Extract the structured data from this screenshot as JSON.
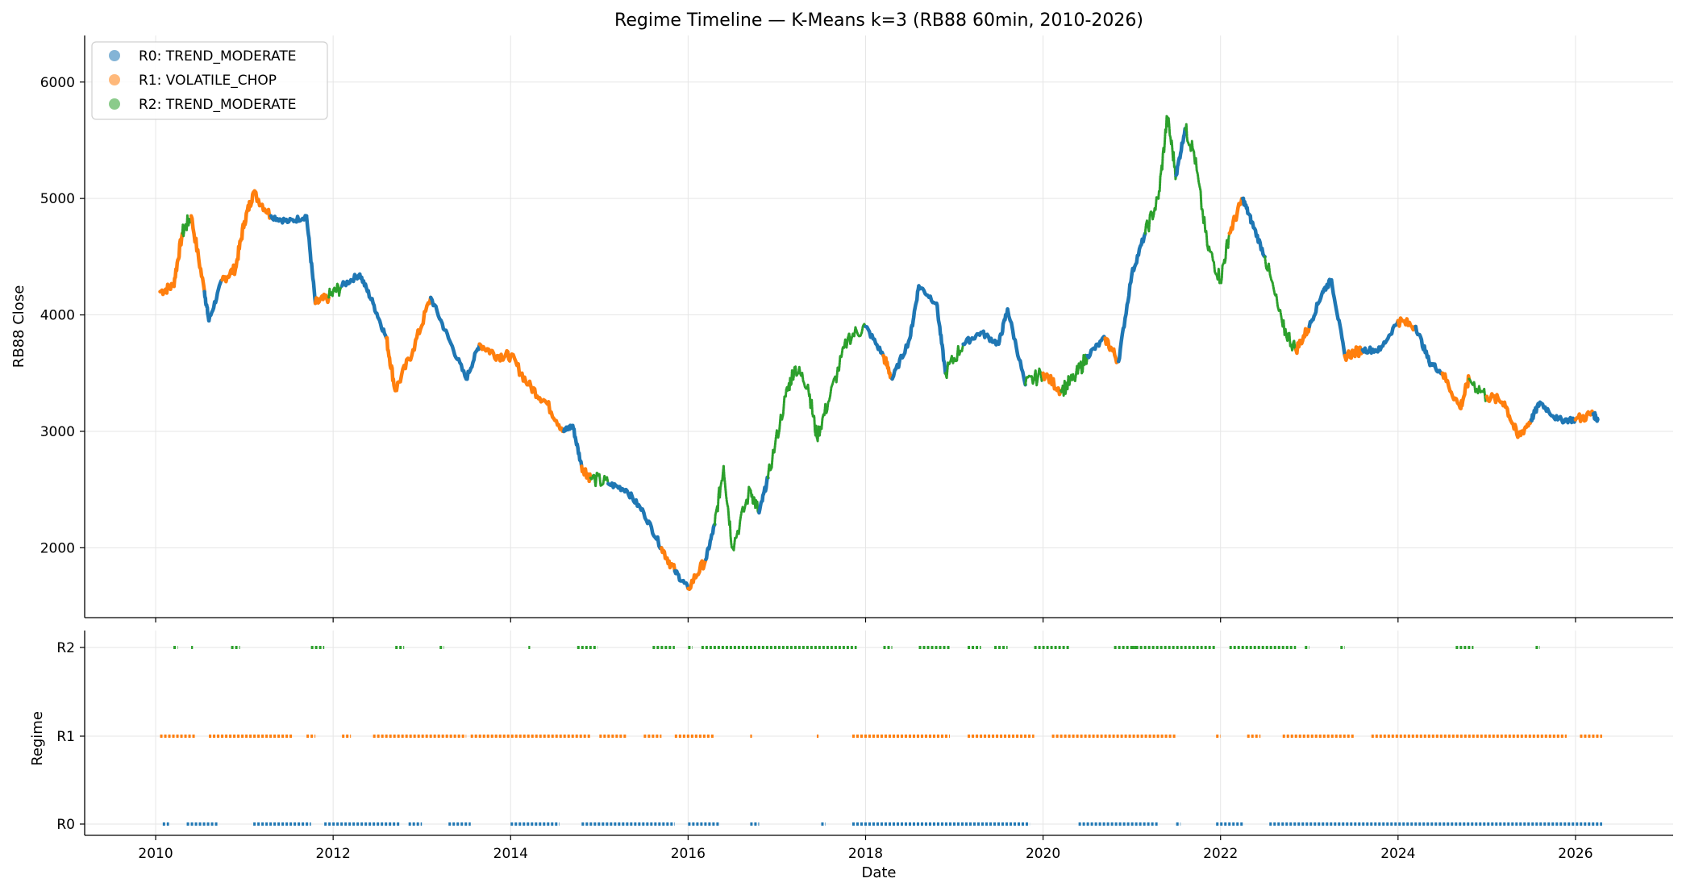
{
  "chart_data": {
    "type": "scatter",
    "title": "Regime Timeline — K-Means k=3 (RB88 60min, 2010-2026)",
    "xlabel": "Date",
    "x_ticks": [
      "2010",
      "2012",
      "2014",
      "2016",
      "2018",
      "2020",
      "2022",
      "2024",
      "2026"
    ],
    "xlim": [
      2009.2,
      2027.1
    ],
    "top_panel": {
      "ylabel": "RB88 Close",
      "ylim": [
        1400,
        6400
      ],
      "y_ticks": [
        "2000",
        "3000",
        "4000",
        "5000",
        "6000"
      ],
      "grid": true,
      "legend_placement": "upper-left",
      "series": [
        {
          "name": "R0: TREND_MODERATE",
          "color": "#1f77b4"
        },
        {
          "name": "R1: VOLATILE_CHOP",
          "color": "#ff7f0e"
        },
        {
          "name": "R2: TREND_MODERATE",
          "color": "#2ca02c"
        }
      ],
      "price_path": [
        [
          2010.05,
          4200,
          1
        ],
        [
          2010.2,
          4250,
          1
        ],
        [
          2010.3,
          4700,
          2
        ],
        [
          2010.4,
          4850,
          1
        ],
        [
          2010.55,
          4200,
          0
        ],
        [
          2010.6,
          3950,
          0
        ],
        [
          2010.75,
          4300,
          1
        ],
        [
          2010.9,
          4400,
          1
        ],
        [
          2011.0,
          4800,
          1
        ],
        [
          2011.1,
          5050,
          1
        ],
        [
          2011.3,
          4850,
          0
        ],
        [
          2011.5,
          4800,
          0
        ],
        [
          2011.7,
          4850,
          0
        ],
        [
          2011.8,
          4100,
          1
        ],
        [
          2011.95,
          4150,
          2
        ],
        [
          2012.1,
          4250,
          0
        ],
        [
          2012.3,
          4350,
          0
        ],
        [
          2012.45,
          4100,
          0
        ],
        [
          2012.6,
          3800,
          1
        ],
        [
          2012.7,
          3350,
          1
        ],
        [
          2012.9,
          3700,
          1
        ],
        [
          2013.1,
          4150,
          0
        ],
        [
          2013.3,
          3800,
          0
        ],
        [
          2013.5,
          3450,
          0
        ],
        [
          2013.65,
          3750,
          1
        ],
        [
          2013.85,
          3650,
          1
        ],
        [
          2014.0,
          3650,
          1
        ],
        [
          2014.2,
          3400,
          1
        ],
        [
          2014.4,
          3250,
          1
        ],
        [
          2014.6,
          3000,
          0
        ],
        [
          2014.7,
          3050,
          0
        ],
        [
          2014.8,
          2700,
          1
        ],
        [
          2014.9,
          2600,
          2
        ],
        [
          2015.1,
          2550,
          0
        ],
        [
          2015.3,
          2500,
          0
        ],
        [
          2015.5,
          2300,
          0
        ],
        [
          2015.7,
          2000,
          1
        ],
        [
          2015.85,
          1800,
          0
        ],
        [
          2016.0,
          1650,
          1
        ],
        [
          2016.2,
          1900,
          0
        ],
        [
          2016.3,
          2200,
          2
        ],
        [
          2016.4,
          2700,
          2
        ],
        [
          2016.5,
          2000,
          2
        ],
        [
          2016.7,
          2500,
          2
        ],
        [
          2016.8,
          2300,
          0
        ],
        [
          2016.9,
          2600,
          2
        ],
        [
          2017.1,
          3300,
          2
        ],
        [
          2017.2,
          3550,
          2
        ],
        [
          2017.35,
          3400,
          2
        ],
        [
          2017.45,
          2950,
          2
        ],
        [
          2017.6,
          3300,
          2
        ],
        [
          2017.8,
          3800,
          2
        ],
        [
          2018.0,
          3900,
          0
        ],
        [
          2018.2,
          3650,
          1
        ],
        [
          2018.3,
          3450,
          0
        ],
        [
          2018.5,
          3800,
          0
        ],
        [
          2018.6,
          4250,
          0
        ],
        [
          2018.8,
          4100,
          0
        ],
        [
          2018.9,
          3500,
          2
        ],
        [
          2019.1,
          3750,
          0
        ],
        [
          2019.3,
          3850,
          0
        ],
        [
          2019.5,
          3750,
          0
        ],
        [
          2019.6,
          4050,
          0
        ],
        [
          2019.8,
          3400,
          2
        ],
        [
          2020.0,
          3500,
          1
        ],
        [
          2020.2,
          3350,
          2
        ],
        [
          2020.35,
          3450,
          2
        ],
        [
          2020.5,
          3650,
          0
        ],
        [
          2020.7,
          3800,
          1
        ],
        [
          2020.85,
          3600,
          0
        ],
        [
          2021.0,
          4350,
          0
        ],
        [
          2021.15,
          4700,
          2
        ],
        [
          2021.3,
          5000,
          2
        ],
        [
          2021.4,
          5700,
          2
        ],
        [
          2021.5,
          5200,
          0
        ],
        [
          2021.6,
          5600,
          2
        ],
        [
          2021.7,
          5400,
          2
        ],
        [
          2021.85,
          4600,
          2
        ],
        [
          2022.0,
          4300,
          2
        ],
        [
          2022.1,
          4700,
          1
        ],
        [
          2022.25,
          5000,
          0
        ],
        [
          2022.35,
          4800,
          0
        ],
        [
          2022.5,
          4500,
          2
        ],
        [
          2022.7,
          3900,
          2
        ],
        [
          2022.85,
          3700,
          1
        ],
        [
          2023.0,
          3900,
          0
        ],
        [
          2023.15,
          4200,
          0
        ],
        [
          2023.25,
          4300,
          0
        ],
        [
          2023.4,
          3650,
          1
        ],
        [
          2023.6,
          3700,
          0
        ],
        [
          2023.8,
          3700,
          0
        ],
        [
          2024.0,
          3950,
          1
        ],
        [
          2024.2,
          3900,
          0
        ],
        [
          2024.35,
          3600,
          0
        ],
        [
          2024.5,
          3500,
          1
        ],
        [
          2024.7,
          3200,
          1
        ],
        [
          2024.8,
          3450,
          2
        ],
        [
          2025.0,
          3300,
          1
        ],
        [
          2025.2,
          3250,
          1
        ],
        [
          2025.35,
          2950,
          1
        ],
        [
          2025.5,
          3100,
          0
        ],
        [
          2025.6,
          3250,
          0
        ],
        [
          2025.8,
          3100,
          0
        ],
        [
          2026.0,
          3100,
          1
        ],
        [
          2026.2,
          3150,
          0
        ],
        [
          2026.25,
          3100,
          0
        ]
      ]
    },
    "bottom_panel": {
      "ylabel": "Regime",
      "y_ticks": [
        "R0",
        "R1",
        "R2"
      ],
      "grid": true,
      "segments": {
        "R0": [
          [
            2010.08,
            2010.15
          ],
          [
            2010.35,
            2010.7
          ],
          [
            2011.1,
            2011.75
          ],
          [
            2011.9,
            2012.75
          ],
          [
            2012.85,
            2013.0
          ],
          [
            2013.3,
            2013.55
          ],
          [
            2014.0,
            2014.55
          ],
          [
            2014.8,
            2015.85
          ],
          [
            2016.0,
            2016.35
          ],
          [
            2016.7,
            2016.8
          ],
          [
            2017.5,
            2017.55
          ],
          [
            2017.85,
            2019.85
          ],
          [
            2020.4,
            2021.3
          ],
          [
            2021.5,
            2021.55
          ],
          [
            2021.95,
            2022.25
          ],
          [
            2022.55,
            2026.3
          ]
        ],
        "R1": [
          [
            2010.05,
            2010.45
          ],
          [
            2010.6,
            2011.55
          ],
          [
            2011.7,
            2011.8
          ],
          [
            2012.1,
            2012.2
          ],
          [
            2012.45,
            2013.5
          ],
          [
            2013.55,
            2014.9
          ],
          [
            2015.0,
            2015.3
          ],
          [
            2015.5,
            2015.7
          ],
          [
            2015.85,
            2016.3
          ],
          [
            2016.7,
            2016.72
          ],
          [
            2017.45,
            2017.47
          ],
          [
            2017.85,
            2018.95
          ],
          [
            2019.15,
            2019.9
          ],
          [
            2020.1,
            2021.5
          ],
          [
            2021.95,
            2022.0
          ],
          [
            2022.3,
            2022.45
          ],
          [
            2022.7,
            2023.5
          ],
          [
            2023.7,
            2025.9
          ],
          [
            2026.05,
            2026.3
          ]
        ],
        "R2": [
          [
            2010.2,
            2010.25
          ],
          [
            2010.4,
            2010.42
          ],
          [
            2010.85,
            2010.95
          ],
          [
            2011.75,
            2011.9
          ],
          [
            2012.7,
            2012.8
          ],
          [
            2013.2,
            2013.25
          ],
          [
            2014.2,
            2014.22
          ],
          [
            2014.75,
            2014.98
          ],
          [
            2015.6,
            2015.85
          ],
          [
            2016.0,
            2016.05
          ],
          [
            2016.15,
            2017.9
          ],
          [
            2018.2,
            2018.3
          ],
          [
            2018.6,
            2018.95
          ],
          [
            2019.15,
            2019.3
          ],
          [
            2019.45,
            2019.6
          ],
          [
            2019.9,
            2020.3
          ],
          [
            2020.8,
            2021.05
          ],
          [
            2021.0,
            2021.95
          ],
          [
            2022.1,
            2022.85
          ],
          [
            2022.95,
            2023.0
          ],
          [
            2023.35,
            2023.4
          ],
          [
            2024.65,
            2024.85
          ],
          [
            2025.55,
            2025.6
          ]
        ]
      }
    }
  }
}
